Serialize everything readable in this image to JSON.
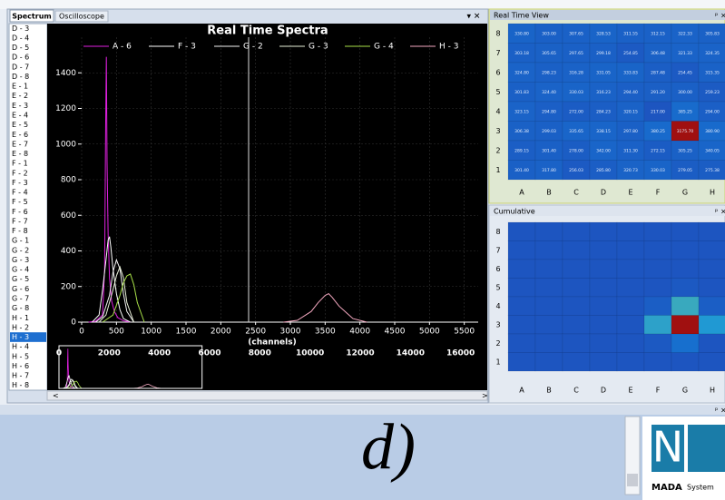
{
  "tabs": [
    "Spectrum",
    "Oscilloscope"
  ],
  "channel_list": {
    "items": [
      "D - 3",
      "D - 4",
      "D - 5",
      "D - 6",
      "D - 7",
      "D - 8",
      "E - 1",
      "E - 2",
      "E - 3",
      "E - 4",
      "E - 5",
      "E - 6",
      "E - 7",
      "E - 8",
      "F - 1",
      "F - 2",
      "F - 3",
      "F - 4",
      "F - 5",
      "F - 6",
      "F - 7",
      "F - 8",
      "G - 1",
      "G - 2",
      "G - 3",
      "G - 4",
      "G - 5",
      "G - 6",
      "G - 7",
      "G - 8",
      "H - 1",
      "H - 2",
      "H - 3",
      "H - 4",
      "H - 5",
      "H - 6",
      "H - 7",
      "H - 8"
    ],
    "selected_index": 32
  },
  "chart_data": {
    "type": "line",
    "title": "Real Time Spectra",
    "x_label": "(channels)",
    "xlim": [
      0,
      5700
    ],
    "xticks": [
      0,
      500,
      1000,
      1500,
      2000,
      2500,
      3000,
      3500,
      4000,
      4500,
      5000,
      5500
    ],
    "ylim": [
      0,
      1600
    ],
    "yticks": [
      0,
      200,
      400,
      600,
      800,
      1000,
      1200,
      1400
    ],
    "grid": true,
    "cursor_x": 2400,
    "series": [
      {
        "name": "A - 6",
        "color": "#e020e0",
        "x": [
          100,
          200,
          300,
          330,
          345,
          355,
          365,
          380,
          400,
          430,
          470,
          520,
          600,
          700
        ],
        "values": [
          0,
          5,
          40,
          300,
          1100,
          1490,
          900,
          500,
          250,
          120,
          60,
          25,
          8,
          0
        ]
      },
      {
        "name": "F - 3",
        "color": "#ffffff",
        "x": [
          150,
          250,
          300,
          350,
          380,
          400,
          420,
          450,
          500,
          550,
          600,
          700
        ],
        "values": [
          0,
          40,
          180,
          350,
          460,
          480,
          420,
          300,
          160,
          70,
          20,
          0
        ]
      },
      {
        "name": "G - 2",
        "color": "#f4f4f4",
        "x": [
          200,
          300,
          400,
          450,
          500,
          550,
          600,
          650,
          750
        ],
        "values": [
          0,
          30,
          150,
          280,
          350,
          300,
          160,
          60,
          0
        ]
      },
      {
        "name": "G - 3",
        "color": "#e8f0d8",
        "x": [
          250,
          350,
          450,
          500,
          550,
          600,
          650,
          750
        ],
        "values": [
          0,
          40,
          180,
          260,
          310,
          250,
          110,
          0
        ]
      },
      {
        "name": "G - 4",
        "color": "#a8e048",
        "x": [
          300,
          450,
          550,
          600,
          650,
          700,
          750,
          800,
          900
        ],
        "values": [
          0,
          40,
          150,
          220,
          260,
          270,
          210,
          110,
          0
        ]
      },
      {
        "name": "H - 3",
        "color": "#f4a8c0",
        "x": [
          2900,
          3100,
          3300,
          3400,
          3500,
          3550,
          3600,
          3700,
          3900,
          4100
        ],
        "values": [
          0,
          10,
          60,
          110,
          150,
          160,
          140,
          90,
          20,
          0
        ]
      }
    ],
    "overview": {
      "xlim": [
        0,
        16700
      ],
      "xticks": [
        0,
        2000,
        4000,
        6000,
        8000,
        10000,
        12000,
        14000,
        16000
      ]
    }
  },
  "real_time_view": {
    "title": "Real Time View",
    "row_labels": [
      "8",
      "7",
      "6",
      "5",
      "4",
      "3",
      "2",
      "1"
    ],
    "column_labels": [
      "A",
      "B",
      "C",
      "D",
      "E",
      "F",
      "G",
      "H"
    ],
    "values": [
      [
        330.8,
        303,
        307.65,
        328.53,
        311.55,
        312.15,
        322.33,
        305.83
      ],
      [
        303.18,
        305.65,
        297.65,
        299.18,
        254.85,
        306.48,
        321.33,
        324.35
      ],
      [
        324.8,
        298.23,
        316.28,
        331.05,
        333.83,
        287.48,
        254.45,
        315.35
      ],
      [
        301.83,
        324.4,
        330.03,
        316.23,
        294.4,
        291.2,
        300,
        259.23
      ],
      [
        323.15,
        294.8,
        272,
        284.23,
        320.15,
        217,
        385.25,
        294
      ],
      [
        306.38,
        299.03,
        335.65,
        338.15,
        297.8,
        380.25,
        3175.7,
        380.9
      ],
      [
        289.15,
        301.4,
        278,
        342,
        311.3,
        272.15,
        305.25,
        340.05
      ],
      [
        301.4,
        317.8,
        256.03,
        285.8,
        320.73,
        330.03,
        279.05,
        275.38
      ]
    ],
    "value_labels": [
      [
        "330.80",
        "303.00",
        "307.65",
        "328.53",
        "311.55",
        "312.15",
        "322.33",
        "305.83"
      ],
      [
        "303.18",
        "305.65",
        "297.65",
        "299.18",
        "254.85",
        "306.48",
        "321.33",
        "324.35"
      ],
      [
        "324.80",
        "298.23",
        "316.28",
        "331.05",
        "333.83",
        "287.48",
        "254.45",
        "315.35"
      ],
      [
        "301.83",
        "324.40",
        "330.03",
        "316.23",
        "294.40",
        "291.20",
        "300.00",
        "259.23"
      ],
      [
        "323.15",
        "294.80",
        "272.00",
        "284.23",
        "320.15",
        "217.00",
        "385.25",
        "294.00"
      ],
      [
        "306.38",
        "299.03",
        "335.65",
        "338.15",
        "297.80",
        "380.25",
        "3175.70",
        "380.90"
      ],
      [
        "289.15",
        "301.40",
        "278.00",
        "342.00",
        "311.30",
        "272.15",
        "305.25",
        "340.05"
      ],
      [
        "301.40",
        "317.80",
        "256.03",
        "285.80",
        "320.73",
        "330.03",
        "279.05",
        "275.38"
      ]
    ]
  },
  "cumulative": {
    "title": "Cumulative",
    "row_labels": [
      "8",
      "7",
      "6",
      "5",
      "4",
      "3",
      "2",
      "1"
    ],
    "column_labels": [
      "A",
      "B",
      "C",
      "D",
      "E",
      "F",
      "G",
      "H"
    ],
    "values": [
      [
        10,
        10,
        10,
        10,
        10,
        10,
        10,
        10
      ],
      [
        10,
        10,
        10,
        10,
        10,
        10,
        10,
        10
      ],
      [
        10,
        10,
        10,
        10,
        10,
        10,
        10,
        10
      ],
      [
        10,
        10,
        10,
        10,
        10,
        10,
        11,
        10
      ],
      [
        10,
        10,
        10,
        10,
        10,
        12,
        40,
        12
      ],
      [
        10,
        10,
        10,
        10,
        10,
        35,
        100,
        30
      ],
      [
        10,
        10,
        10,
        10,
        10,
        11,
        16,
        10
      ],
      [
        10,
        10,
        10,
        10,
        10,
        10,
        10,
        10
      ]
    ]
  },
  "caption": "d)",
  "logo": {
    "mark": "N",
    "brand": "MADA",
    "product": "System"
  }
}
